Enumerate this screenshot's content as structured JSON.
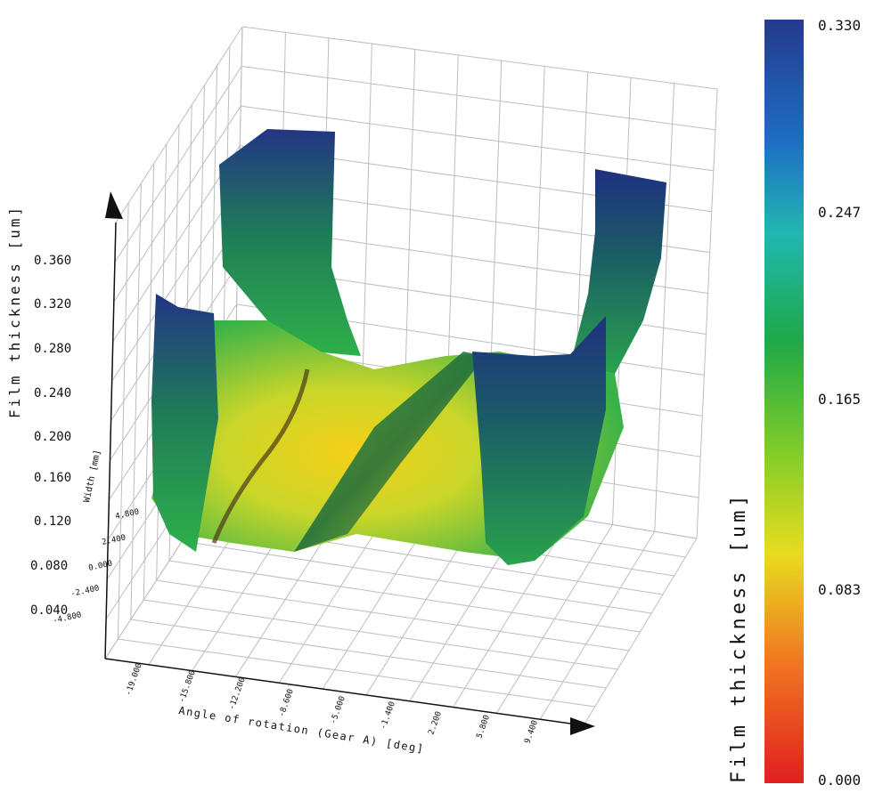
{
  "chart_data": {
    "type": "surface3d",
    "z_axis": {
      "label": "Film thickness [um]",
      "ticks": [
        "0.360",
        "0.320",
        "0.280",
        "0.240",
        "0.200",
        "0.160",
        "0.120",
        "0.080",
        "0.040"
      ]
    },
    "x_axis": {
      "label": "Angle of rotation (Gear A) [deg]",
      "ticks": [
        "-19.000",
        "-15.800",
        "-12.200",
        "-8.600",
        "-5.000",
        "-1.400",
        "2.200",
        "5.800",
        "9.400"
      ]
    },
    "y_axis": {
      "label": "Width [mm]",
      "ticks": [
        "4.800",
        "2.400",
        "0.000",
        "-2.400",
        "-4.800"
      ]
    },
    "colorbar": {
      "label": "Film thickness [um]",
      "ticks": [
        "0.330",
        "0.247",
        "0.165",
        "0.083",
        "0.000"
      ],
      "range": [
        0.0,
        0.33
      ],
      "colors": [
        "#e02020",
        "#f07820",
        "#e8dc20",
        "#7ccc28",
        "#1ea84a",
        "#20b8b0",
        "#1e6ec4",
        "#243a8c"
      ]
    },
    "grid": true,
    "colors": {
      "grid": "#bdbdbd",
      "axis": "#111111",
      "surface_low": "#f0d21e",
      "surface_mid": "#34b44a",
      "surface_high": "#1e2a80"
    }
  }
}
